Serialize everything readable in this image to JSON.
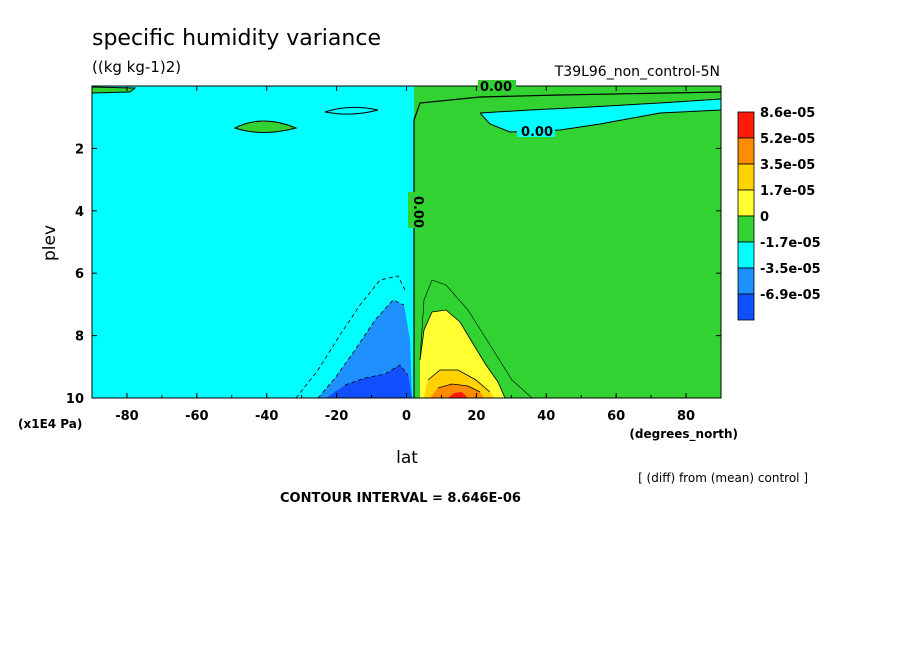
{
  "chart_data": {
    "type": "heatmap",
    "subtype": "filled-contour latitude-pressure cross section",
    "title": "specific humidity variance",
    "units": "((kg kg-1)2)",
    "run_label": "T39L96_non_control-5N",
    "xlabel": "lat",
    "xunit": "(degrees_north)",
    "ylabel": "plev",
    "yunit": "(x1E4 Pa)",
    "xlim": [
      -90,
      90
    ],
    "ylim": [
      10,
      0
    ],
    "y_reversed": true,
    "x_ticks": [
      "-80",
      "-60",
      "-40",
      "-20",
      "0",
      "20",
      "40",
      "60",
      "80"
    ],
    "y_ticks": [
      "2",
      "4",
      "6",
      "8",
      "10"
    ],
    "contour_labels": [
      "0.00",
      "0.00",
      "0.00"
    ],
    "note": "[ (diff) from (mean) control ]",
    "contour_interval": "CONTOUR INTERVAL = 8.646E-06",
    "legend": {
      "placement": "right",
      "labels": [
        "8.6e-05",
        "5.2e-05",
        "3.5e-05",
        "1.7e-05",
        "0",
        "-1.7e-05",
        "-3.5e-05",
        "-6.9e-05"
      ],
      "colors": [
        "#ff1a0a",
        "#ff8c00",
        "#ffd200",
        "#ffff32",
        "#32d232",
        "#00ffff",
        "#1e90ff",
        "#1050ff"
      ]
    },
    "regions": [
      {
        "name": "southern hemisphere",
        "lat_range": [
          -90,
          3
        ],
        "plev_range": [
          0.2,
          10
        ],
        "sign": "negative",
        "level": "0 to -1.7e-05"
      },
      {
        "name": "northern hemisphere",
        "lat_range": [
          3,
          90
        ],
        "plev_range": [
          0.2,
          10
        ],
        "sign": "positive",
        "level": "0 to 1.7e-05"
      },
      {
        "name": "lower tropical negative lobe",
        "lat_range": [
          -30,
          3
        ],
        "plev_range": [
          6,
          10
        ],
        "sign": "negative",
        "level": "down to -6.9e-05"
      },
      {
        "name": "lower tropical positive lobe",
        "lat_range": [
          5,
          28
        ],
        "plev_range": [
          6.5,
          10
        ],
        "sign": "positive",
        "level": "up to 8.6e-05",
        "peak_lat": 15,
        "peak_plev": 10
      }
    ]
  }
}
